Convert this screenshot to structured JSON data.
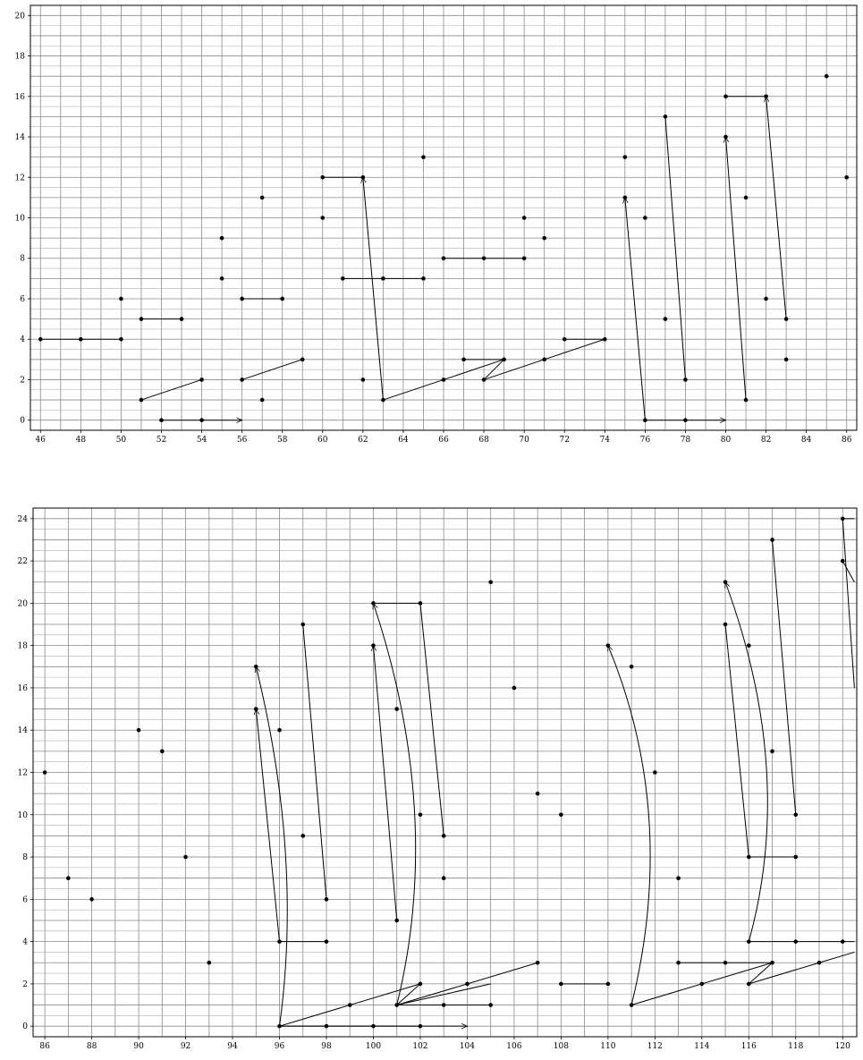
{
  "chart_data": [
    {
      "type": "scatter",
      "xlim": [
        45.5,
        86.5
      ],
      "ylim": [
        -0.5,
        20.5
      ],
      "x_ticks": [
        "46",
        "48",
        "50",
        "52",
        "54",
        "56",
        "58",
        "60",
        "62",
        "64",
        "66",
        "68",
        "70",
        "72",
        "74",
        "76",
        "78",
        "80",
        "82",
        "84",
        "86"
      ],
      "y_ticks": [
        "0",
        "2",
        "4",
        "6",
        "8",
        "10",
        "12",
        "14",
        "16",
        "18",
        "20"
      ],
      "grid": true,
      "points": [
        [
          46,
          4
        ],
        [
          48,
          4
        ],
        [
          50,
          4
        ],
        [
          50,
          6
        ],
        [
          51,
          5
        ],
        [
          53,
          5
        ],
        [
          51,
          1
        ],
        [
          54,
          2
        ],
        [
          52,
          0
        ],
        [
          54,
          0
        ],
        [
          55,
          9
        ],
        [
          55,
          7
        ],
        [
          56,
          6
        ],
        [
          58,
          6
        ],
        [
          56,
          2
        ],
        [
          59,
          3
        ],
        [
          57,
          11
        ],
        [
          57,
          1
        ],
        [
          60,
          12
        ],
        [
          62,
          12
        ],
        [
          60,
          10
        ],
        [
          61,
          7
        ],
        [
          63,
          7
        ],
        [
          65,
          7
        ],
        [
          62,
          2
        ],
        [
          63,
          1
        ],
        [
          65,
          13
        ],
        [
          66,
          2
        ],
        [
          66,
          8
        ],
        [
          68,
          8
        ],
        [
          70,
          8
        ],
        [
          67,
          3
        ],
        [
          69,
          3
        ],
        [
          68,
          2
        ],
        [
          70,
          10
        ],
        [
          71,
          9
        ],
        [
          71,
          3
        ],
        [
          72,
          4
        ],
        [
          74,
          4
        ],
        [
          75,
          13
        ],
        [
          75,
          11
        ],
        [
          76,
          10
        ],
        [
          76,
          0
        ],
        [
          78,
          0
        ],
        [
          77,
          15
        ],
        [
          77,
          5
        ],
        [
          78,
          2
        ],
        [
          80,
          16
        ],
        [
          82,
          16
        ],
        [
          80,
          14
        ],
        [
          81,
          11
        ],
        [
          81,
          1
        ],
        [
          82,
          6
        ],
        [
          83,
          5
        ],
        [
          83,
          3
        ],
        [
          85,
          17
        ],
        [
          86,
          12
        ]
      ],
      "segments": [
        [
          46,
          4,
          48,
          4
        ],
        [
          48,
          4,
          50,
          4
        ],
        [
          51,
          5,
          53,
          5
        ],
        [
          51,
          1,
          54,
          2
        ],
        [
          56,
          6,
          58,
          6
        ],
        [
          56,
          2,
          59,
          3
        ],
        [
          60,
          12,
          62,
          12
        ],
        [
          61,
          7,
          63,
          7
        ],
        [
          63,
          7,
          65,
          7
        ],
        [
          63,
          1,
          66,
          2
        ],
        [
          66,
          2,
          69,
          3
        ],
        [
          67,
          3,
          69,
          3
        ],
        [
          66,
          8,
          68,
          8
        ],
        [
          68,
          8,
          70,
          8
        ],
        [
          68,
          2,
          69,
          3
        ],
        [
          68,
          2,
          71,
          3
        ],
        [
          71,
          3,
          74,
          4
        ],
        [
          72,
          4,
          74,
          4
        ],
        [
          76,
          0,
          78,
          0
        ],
        [
          78,
          2,
          77,
          15
        ],
        [
          80,
          16,
          82,
          16
        ]
      ],
      "arrows": [
        [
          52,
          0,
          56,
          0
        ],
        [
          63,
          1,
          62,
          12
        ],
        [
          76,
          0,
          75,
          11
        ],
        [
          78,
          0,
          80,
          0
        ],
        [
          81,
          1,
          80,
          14
        ],
        [
          83,
          5,
          82,
          16
        ]
      ]
    },
    {
      "type": "scatter",
      "xlim": [
        85.5,
        120.6
      ],
      "ylim": [
        -0.5,
        24.5
      ],
      "x_ticks": [
        "86",
        "88",
        "90",
        "92",
        "94",
        "96",
        "98",
        "100",
        "102",
        "104",
        "106",
        "108",
        "110",
        "112",
        "114",
        "116",
        "118",
        "120"
      ],
      "y_ticks": [
        "0",
        "2",
        "4",
        "6",
        "8",
        "10",
        "12",
        "14",
        "16",
        "18",
        "20",
        "22",
        "24"
      ],
      "grid": true,
      "points": [
        [
          86,
          12
        ],
        [
          87,
          7
        ],
        [
          88,
          6
        ],
        [
          90,
          14
        ],
        [
          91,
          13
        ],
        [
          92,
          8
        ],
        [
          93,
          3
        ],
        [
          95,
          17
        ],
        [
          95,
          15
        ],
        [
          96,
          14
        ],
        [
          96,
          4
        ],
        [
          96,
          0
        ],
        [
          97,
          19
        ],
        [
          97,
          9
        ],
        [
          98,
          6
        ],
        [
          98,
          4
        ],
        [
          98,
          0
        ],
        [
          99,
          1
        ],
        [
          100,
          20
        ],
        [
          100,
          18
        ],
        [
          100,
          0
        ],
        [
          101,
          15
        ],
        [
          101,
          5
        ],
        [
          101,
          1
        ],
        [
          102,
          20
        ],
        [
          102,
          10
        ],
        [
          102,
          2
        ],
        [
          102,
          0
        ],
        [
          103,
          9
        ],
        [
          103,
          7
        ],
        [
          103,
          1
        ],
        [
          104,
          2
        ],
        [
          105,
          21
        ],
        [
          105,
          1
        ],
        [
          106,
          16
        ],
        [
          107,
          11
        ],
        [
          107,
          3
        ],
        [
          108,
          10
        ],
        [
          108,
          2
        ],
        [
          110,
          18
        ],
        [
          110,
          2
        ],
        [
          111,
          17
        ],
        [
          111,
          1
        ],
        [
          112,
          12
        ],
        [
          113,
          7
        ],
        [
          113,
          3
        ],
        [
          114,
          2
        ],
        [
          115,
          21
        ],
        [
          115,
          19
        ],
        [
          115,
          3
        ],
        [
          116,
          18
        ],
        [
          116,
          8
        ],
        [
          116,
          4
        ],
        [
          116,
          2
        ],
        [
          117,
          23
        ],
        [
          117,
          13
        ],
        [
          117,
          3
        ],
        [
          118,
          10
        ],
        [
          118,
          8
        ],
        [
          118,
          4
        ],
        [
          119,
          3
        ],
        [
          120,
          24
        ],
        [
          120,
          22
        ],
        [
          120,
          4
        ]
      ],
      "segments": [
        [
          96,
          4,
          98,
          4
        ],
        [
          98,
          6,
          97,
          19
        ],
        [
          100,
          20,
          102,
          20
        ],
        [
          102,
          20,
          103,
          9
        ],
        [
          101,
          1,
          102,
          2
        ],
        [
          101,
          1,
          103,
          1
        ],
        [
          103,
          1,
          105,
          1
        ],
        [
          101,
          1,
          105,
          2
        ],
        [
          101,
          1,
          107,
          3
        ],
        [
          108,
          2,
          110,
          2
        ],
        [
          111,
          1,
          117,
          3
        ],
        [
          113,
          3,
          115,
          3
        ],
        [
          115,
          3,
          117,
          3
        ],
        [
          116,
          2,
          117,
          3
        ],
        [
          116,
          2,
          119,
          3
        ],
        [
          116,
          8,
          118,
          8
        ],
        [
          116,
          8,
          115,
          19
        ],
        [
          116,
          4,
          118,
          4
        ],
        [
          118,
          4,
          120,
          4
        ],
        [
          118,
          10,
          117,
          23
        ],
        [
          120,
          24,
          120.5,
          24
        ],
        [
          120.5,
          21,
          120,
          22
        ],
        [
          120.5,
          16,
          120,
          24
        ],
        [
          120.5,
          4,
          120,
          4
        ],
        [
          120.5,
          3.5,
          119,
          3
        ],
        [
          96,
          0,
          98,
          0
        ],
        [
          98,
          0,
          100,
          0
        ],
        [
          100,
          0,
          102,
          0
        ],
        [
          96,
          0,
          102,
          2
        ]
      ],
      "curves": [
        [
          96,
          0,
          97,
          8,
          95,
          17
        ],
        [
          101,
          1,
          103,
          10,
          100,
          20
        ],
        [
          111,
          1,
          113,
          10,
          110,
          18
        ],
        [
          116,
          4,
          118,
          12,
          115,
          21
        ]
      ],
      "arrows": [
        [
          96,
          0,
          104,
          0
        ],
        [
          96,
          4,
          95,
          15
        ],
        [
          101,
          5,
          100,
          18
        ]
      ]
    }
  ]
}
